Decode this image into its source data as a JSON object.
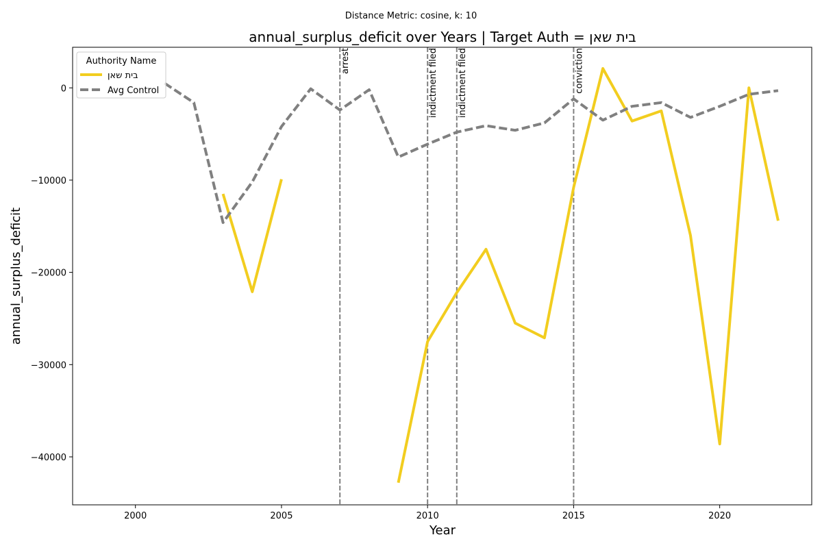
{
  "chart_data": {
    "type": "line",
    "suptitle": "Distance Metric: cosine, k: 10",
    "title": "annual_surplus_deficit over Years | Target Auth = בית שאן",
    "xlabel": "Year",
    "ylabel": "annual_surplus_deficit",
    "xlim": [
      1997.85,
      2023.15
    ],
    "ylim": [
      -45200,
      4400
    ],
    "xticks": [
      2000,
      2005,
      2010,
      2015,
      2020
    ],
    "yticks": [
      -40000,
      -30000,
      -20000,
      -10000,
      0
    ],
    "legend": {
      "title": "Authority Name",
      "position": "top-left"
    },
    "colors": {
      "target": "#f2cd1f",
      "control": "#808080",
      "event": "#808080"
    },
    "series": [
      {
        "name": "בית שאן",
        "style": "solid",
        "segments": [
          {
            "x": [
              2003,
              2004,
              2005
            ],
            "y": [
              -11500,
              -22100,
              -9900
            ]
          },
          {
            "x": [
              2009,
              2010,
              2011,
              2012,
              2013,
              2014,
              2015,
              2016,
              2017,
              2018,
              2019,
              2020,
              2021,
              2022
            ],
            "y": [
              -42800,
              -27500,
              -22200,
              -17500,
              -25500,
              -27100,
              -10800,
              2100,
              -3600,
              -2500,
              -16000,
              -38600,
              0,
              -14400
            ]
          }
        ]
      },
      {
        "name": "Avg Control",
        "style": "dashed",
        "segments": [
          {
            "x": [
              2001,
              2002,
              2003,
              2004,
              2005,
              2006,
              2007,
              2008,
              2009,
              2010,
              2011,
              2012,
              2013,
              2014,
              2015,
              2016,
              2017,
              2018,
              2019,
              2020,
              2021,
              2022
            ],
            "y": [
              500,
              -1600,
              -14600,
              -10200,
              -4200,
              -100,
              -2400,
              -200,
              -7500,
              -6100,
              -4800,
              -4100,
              -4600,
              -3800,
              -1200,
              -3500,
              -2000,
              -1600,
              -3200,
              -2000,
              -700,
              -300
            ]
          }
        ]
      }
    ],
    "events": [
      {
        "x": 2007,
        "label": "arrest"
      },
      {
        "x": 2010,
        "label": "indictment filed"
      },
      {
        "x": 2011,
        "label": "indictment filed"
      },
      {
        "x": 2015,
        "label": "conviction"
      }
    ]
  }
}
